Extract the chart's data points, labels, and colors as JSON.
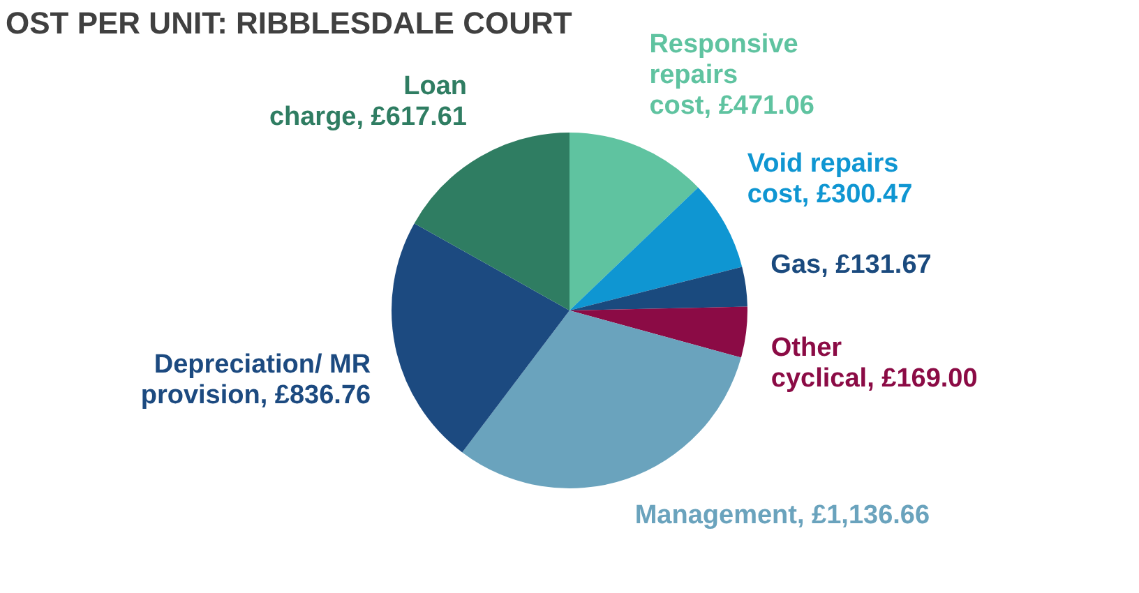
{
  "chart_data": {
    "type": "pie",
    "title": "OST PER UNIT: RIBBLESDALE COURT",
    "categories": [
      "Responsive repairs cost",
      "Void repairs cost",
      "Gas",
      "Other cyclical",
      "Management",
      "Depreciation/ MR provision",
      "Loan charge"
    ],
    "values": [
      471.06,
      300.47,
      131.67,
      169.0,
      1136.66,
      836.76,
      617.61
    ],
    "value_labels": [
      "£471.06",
      "£300.47",
      "£131.67",
      "£169.00",
      "£1,136.66",
      "£836.76",
      "£617.61"
    ],
    "colors": [
      "#5fc3a0",
      "#0f96d2",
      "#1a4a7e",
      "#8b0b45",
      "#6aa3bd",
      "#1c4a80",
      "#2f7d62"
    ],
    "legend": false
  }
}
